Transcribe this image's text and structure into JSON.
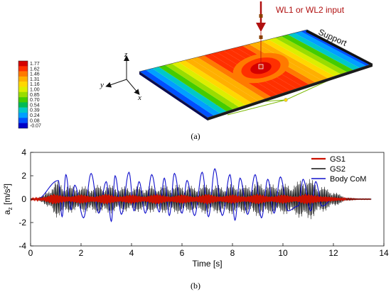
{
  "panel_a": {
    "label": "(a)",
    "input_label": "WL1 or WL2 input",
    "support_label": "Support",
    "axes": {
      "x": "x",
      "y": "y",
      "z": "z"
    },
    "colorbar": {
      "ticks": [
        "1.77",
        "1.62",
        "1.46",
        "1.31",
        "1.16",
        "1.00",
        "0.85",
        "0.70",
        "0.54",
        "0.39",
        "0.24",
        "0.08",
        "-0.07"
      ],
      "colors": [
        "#d40000",
        "#ff3000",
        "#ff7a00",
        "#ffb000",
        "#ffd800",
        "#ddee00",
        "#99dd00",
        "#44cc00",
        "#00bb55",
        "#00c8c8",
        "#00a0ff",
        "#0050ff",
        "#0000c8"
      ]
    }
  },
  "panel_b_label": "(b)",
  "chart_data": {
    "type": "line",
    "xlabel": "Time [s]",
    "ylabel_base": "a",
    "ylabel_sub": "z",
    "ylabel_unit": " [m/s²]",
    "xlim": [
      0,
      14
    ],
    "ylim": [
      -4,
      4
    ],
    "xticks": [
      0,
      2,
      4,
      6,
      8,
      10,
      12,
      14
    ],
    "yticks": [
      -4,
      -2,
      0,
      2,
      4
    ],
    "legend_position": "top-right",
    "grid": false,
    "series": [
      {
        "name": "GS1",
        "color": "#cc1100",
        "envelope": [
          [
            0.0,
            0.05
          ],
          [
            0.5,
            0.1
          ],
          [
            0.9,
            0.45
          ],
          [
            1.5,
            0.2
          ],
          [
            2.0,
            0.4
          ],
          [
            2.5,
            0.2
          ],
          [
            3.0,
            0.45
          ],
          [
            3.5,
            0.2
          ],
          [
            4.0,
            0.4
          ],
          [
            4.5,
            0.2
          ],
          [
            5.0,
            0.45
          ],
          [
            5.5,
            0.2
          ],
          [
            6.0,
            0.4
          ],
          [
            6.5,
            0.2
          ],
          [
            7.0,
            0.45
          ],
          [
            7.5,
            0.2
          ],
          [
            8.0,
            0.4
          ],
          [
            8.5,
            0.2
          ],
          [
            9.0,
            0.45
          ],
          [
            9.5,
            0.2
          ],
          [
            10.0,
            0.4
          ],
          [
            10.5,
            0.2
          ],
          [
            10.9,
            0.45
          ],
          [
            11.5,
            0.25
          ],
          [
            12.0,
            0.15
          ],
          [
            12.5,
            0.05
          ],
          [
            13.0,
            0.02
          ]
        ]
      },
      {
        "name": "GS2",
        "color": "#111111",
        "envelope": [
          [
            0.0,
            0.05
          ],
          [
            0.5,
            0.3
          ],
          [
            1.0,
            1.6
          ],
          [
            1.5,
            1.2
          ],
          [
            2.0,
            1.1
          ],
          [
            2.5,
            1.2
          ],
          [
            3.0,
            1.3
          ],
          [
            3.5,
            1.1
          ],
          [
            4.0,
            1.1
          ],
          [
            4.5,
            1.1
          ],
          [
            5.0,
            1.2
          ],
          [
            5.5,
            1.2
          ],
          [
            6.0,
            1.3
          ],
          [
            6.5,
            1.1
          ],
          [
            7.0,
            1.3
          ],
          [
            7.5,
            1.2
          ],
          [
            8.0,
            1.3
          ],
          [
            8.5,
            1.2
          ],
          [
            9.0,
            1.5
          ],
          [
            9.5,
            1.3
          ],
          [
            10.0,
            1.3
          ],
          [
            10.5,
            1.4
          ],
          [
            10.9,
            2.0
          ],
          [
            11.5,
            1.2
          ],
          [
            12.0,
            0.7
          ],
          [
            12.5,
            0.15
          ],
          [
            13.0,
            0.03
          ]
        ]
      },
      {
        "name": "Body CoM",
        "color": "#1010cc",
        "peaks": [
          [
            1.1,
            1.6
          ],
          [
            1.4,
            2.1
          ],
          [
            1.75,
            1.2
          ],
          [
            2.4,
            2.2
          ],
          [
            3.0,
            1.5
          ],
          [
            3.35,
            2.0
          ],
          [
            3.9,
            2.3
          ],
          [
            4.3,
            1.5
          ],
          [
            4.8,
            2.1
          ],
          [
            5.3,
            1.8
          ],
          [
            5.7,
            2.2
          ],
          [
            6.2,
            1.6
          ],
          [
            6.8,
            2.3
          ],
          [
            7.3,
            2.6
          ],
          [
            7.9,
            2.1
          ],
          [
            8.3,
            1.8
          ],
          [
            8.9,
            2.1
          ],
          [
            9.4,
            1.7
          ],
          [
            9.9,
            1.9
          ],
          [
            10.8,
            1.7
          ],
          [
            11.3,
            1.5
          ]
        ],
        "troughs": [
          [
            1.25,
            -1.5
          ],
          [
            1.6,
            -0.9
          ],
          [
            2.1,
            -1.6
          ],
          [
            2.7,
            -1.2
          ],
          [
            3.2,
            -1.9
          ],
          [
            3.6,
            -1.3
          ],
          [
            4.1,
            -1.0
          ],
          [
            4.55,
            -1.2
          ],
          [
            5.1,
            -1.1
          ],
          [
            5.5,
            -1.4
          ],
          [
            6.0,
            -1.2
          ],
          [
            6.5,
            -1.4
          ],
          [
            7.05,
            -1.5
          ],
          [
            7.6,
            -1.4
          ],
          [
            8.1,
            -1.8
          ],
          [
            8.6,
            -1.3
          ],
          [
            9.15,
            -1.6
          ],
          [
            9.65,
            -1.2
          ],
          [
            10.2,
            -1.0
          ],
          [
            10.6,
            -0.6
          ],
          [
            11.1,
            -1.0
          ],
          [
            11.55,
            -0.6
          ]
        ]
      }
    ]
  }
}
